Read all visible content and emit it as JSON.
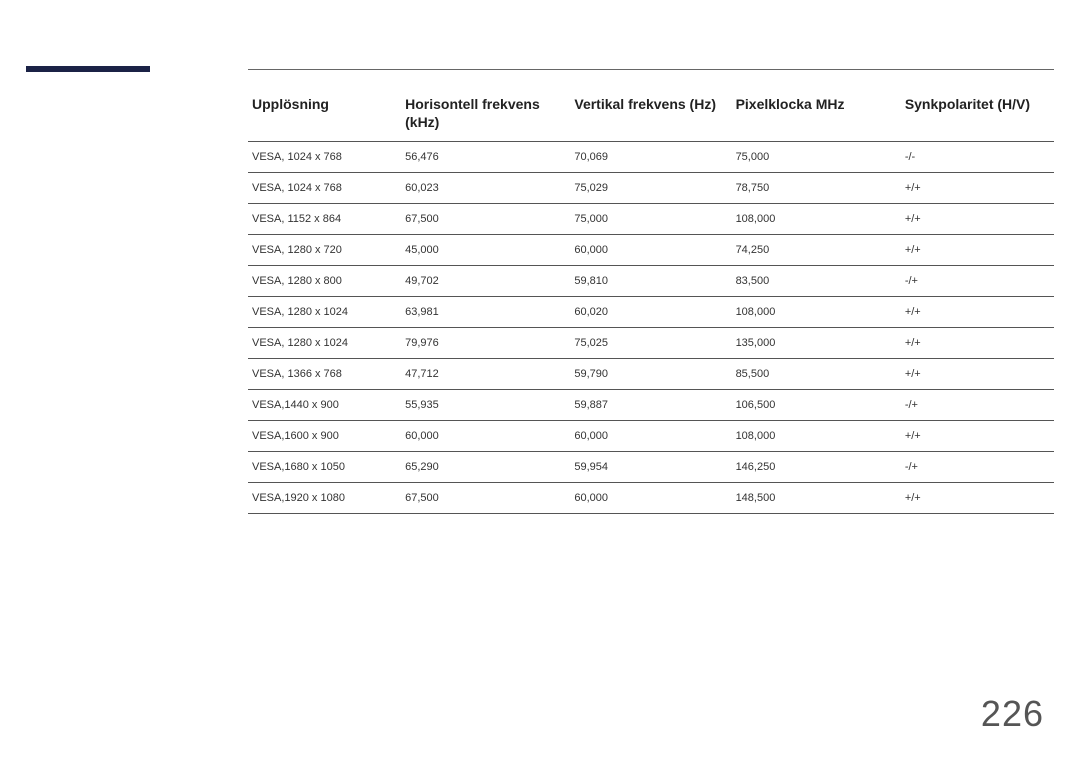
{
  "accent_bar_color": "#1b2246",
  "page_number": "226",
  "table": {
    "columns": [
      "Upplösning",
      "Horisontell frekvens (kHz)",
      "Vertikal frekvens (Hz)",
      "Pixelklocka MHz",
      "Synkpolaritet (H/V)"
    ],
    "rows": [
      [
        "VESA, 1024 x 768",
        "56,476",
        "70,069",
        "75,000",
        "-/-"
      ],
      [
        "VESA, 1024 x 768",
        "60,023",
        "75,029",
        "78,750",
        "+/+"
      ],
      [
        "VESA, 1152 x 864",
        "67,500",
        "75,000",
        "108,000",
        "+/+"
      ],
      [
        "VESA, 1280 x 720",
        "45,000",
        "60,000",
        "74,250",
        "+/+"
      ],
      [
        "VESA, 1280 x 800",
        "49,702",
        "59,810",
        "83,500",
        "-/+"
      ],
      [
        "VESA, 1280 x 1024",
        "63,981",
        "60,020",
        "108,000",
        "+/+"
      ],
      [
        "VESA, 1280 x 1024",
        "79,976",
        "75,025",
        "135,000",
        "+/+"
      ],
      [
        "VESA, 1366 x 768",
        "47,712",
        "59,790",
        "85,500",
        "+/+"
      ],
      [
        "VESA,1440 x 900",
        "55,935",
        "59,887",
        "106,500",
        "-/+"
      ],
      [
        "VESA,1600 x 900",
        "60,000",
        "60,000",
        "108,000",
        "+/+"
      ],
      [
        "VESA,1680 x 1050",
        "65,290",
        "59,954",
        "146,250",
        "-/+"
      ],
      [
        "VESA,1920 x 1080",
        "67,500",
        "60,000",
        "148,500",
        "+/+"
      ]
    ]
  }
}
